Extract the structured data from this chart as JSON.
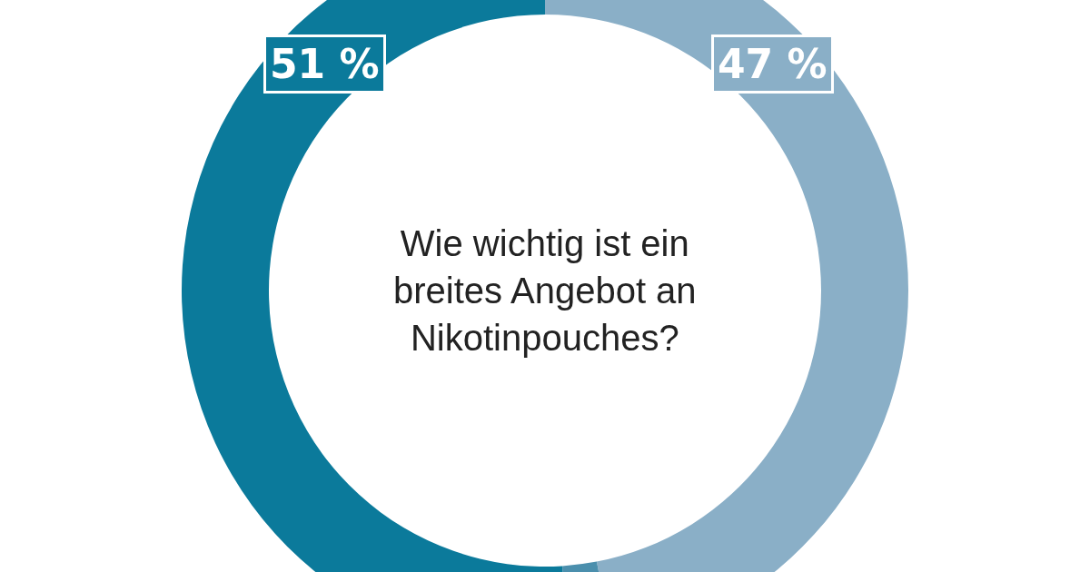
{
  "chart_data": {
    "type": "donut",
    "title": "Wie wichtig ist ein\nbreites Angebot an\nNikotinpouches?",
    "categories": [
      null,
      null,
      null
    ],
    "values": [
      47,
      2,
      51
    ],
    "colors": [
      "#8aafc7",
      "#4b8fad",
      "#0b7a9b"
    ],
    "value_labels": [
      "47 %",
      null,
      "51 %"
    ],
    "legend": false
  }
}
